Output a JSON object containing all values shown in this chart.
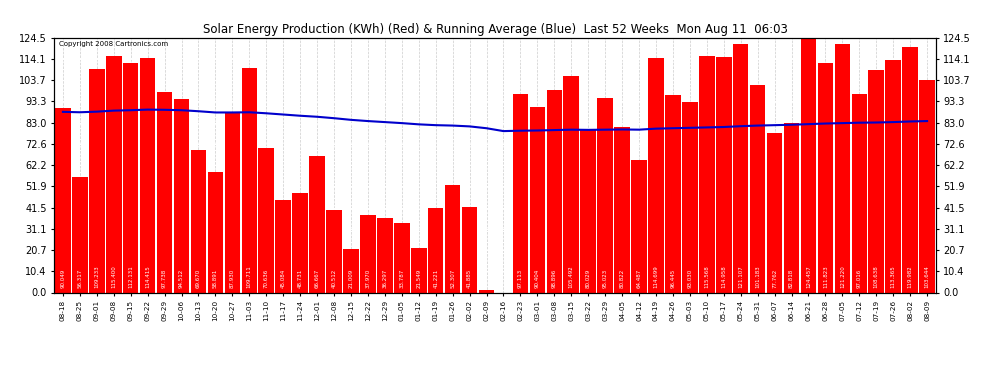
{
  "title": "Solar Energy Production (KWh) (Red) & Running Average (Blue)  Last 52 Weeks  Mon Aug 11  06:03",
  "copyright": "Copyright 2008 Cartronics.com",
  "bar_color": "#ff0000",
  "avg_color": "#0000cc",
  "background_color": "#ffffff",
  "yticks": [
    0.0,
    10.4,
    20.7,
    31.1,
    41.5,
    51.9,
    62.2,
    72.6,
    83.0,
    93.3,
    103.7,
    114.1,
    124.5
  ],
  "dates": [
    "08-18",
    "08-25",
    "09-01",
    "09-08",
    "09-15",
    "09-22",
    "09-29",
    "10-06",
    "10-13",
    "10-20",
    "10-27",
    "11-03",
    "11-10",
    "11-17",
    "11-24",
    "12-01",
    "12-08",
    "12-15",
    "12-22",
    "12-29",
    "01-05",
    "01-12",
    "01-19",
    "01-26",
    "02-02",
    "02-09",
    "02-16",
    "02-23",
    "03-01",
    "03-08",
    "03-15",
    "03-22",
    "03-29",
    "04-05",
    "04-12",
    "04-19",
    "04-26",
    "05-03",
    "05-10",
    "05-17",
    "05-24",
    "05-31",
    "06-07",
    "06-14",
    "06-21",
    "06-28",
    "07-05",
    "07-12",
    "07-19",
    "07-26",
    "08-02",
    "08-09"
  ],
  "values": [
    90.049,
    56.317,
    109.233,
    115.4,
    112.131,
    114.415,
    97.738,
    94.512,
    69.67,
    58.891,
    87.93,
    109.711,
    70.636,
    45.084,
    48.731,
    66.667,
    40.512,
    21.009,
    37.97,
    36.297,
    33.787,
    21.549,
    41.221,
    52.307,
    41.885,
    1.413,
    0.0,
    97.113,
    90.404,
    98.896,
    105.492,
    80.029,
    95.023,
    80.822,
    64.487,
    114.699,
    96.445,
    93.03,
    115.568,
    114.958,
    121.107,
    101.183,
    77.762,
    82.818,
    124.457,
    111.823,
    121.22,
    97.016,
    108.638,
    113.365,
    119.982,
    103.644
  ],
  "running_avg": [
    88.2,
    88.0,
    88.3,
    88.8,
    89.0,
    89.3,
    89.2,
    89.0,
    88.5,
    87.9,
    87.9,
    88.0,
    87.5,
    86.9,
    86.3,
    85.8,
    85.1,
    84.3,
    83.7,
    83.2,
    82.7,
    82.1,
    81.7,
    81.5,
    81.1,
    80.2,
    78.8,
    79.0,
    79.1,
    79.3,
    79.5,
    79.4,
    79.5,
    79.6,
    79.5,
    80.0,
    80.2,
    80.4,
    80.6,
    80.8,
    81.2,
    81.5,
    81.7,
    81.9,
    82.2,
    82.5,
    82.7,
    82.9,
    83.0,
    83.2,
    83.5,
    83.7
  ],
  "ylim": [
    0.0,
    124.5
  ],
  "figwidth": 9.9,
  "figheight": 3.75,
  "dpi": 100
}
